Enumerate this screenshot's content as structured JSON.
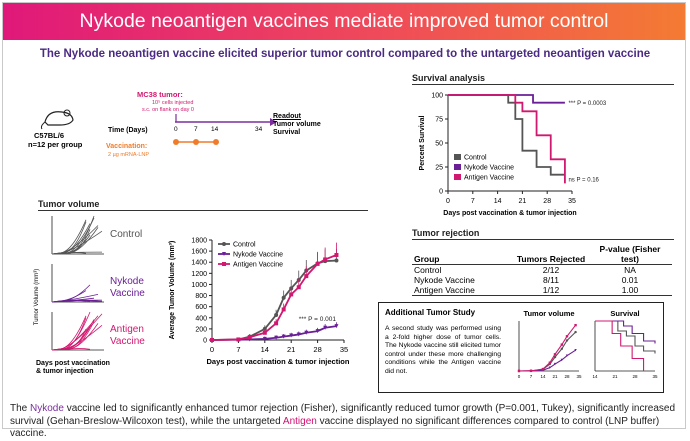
{
  "banner_title": "Nykode neoantigen vaccines mediate improved tumor control",
  "subtitle": "The Nykode neoantigen vaccine elicited superior tumor control compared to the untargeted neoantigen vaccine",
  "design": {
    "mouse_label": "C57BL/6",
    "group_size": "n=12 per group",
    "tumor_label": "MC38 tumor:",
    "tumor_detail_1": "10⁵ cells injected",
    "tumor_detail_2": "s.c. on flank on day 0",
    "time_label": "Time (Days)",
    "ticks": [
      "0",
      "7",
      "14",
      "34"
    ],
    "vaccination_label": "Vaccination:",
    "vaccination_detail": "2 µg mRNA-LNP",
    "readout_title": "Readout",
    "readout_items": [
      "Tumor volume",
      "Survival"
    ]
  },
  "colors": {
    "control": "#555555",
    "nykode": "#6a1f96",
    "antigen": "#d11870",
    "accent_orange": "#f07c2a"
  },
  "sections": {
    "tumor_volume": "Tumor volume",
    "survival": "Survival analysis",
    "rejection": "Tumor rejection",
    "additional": "Additional Tumor Study"
  },
  "spaghetti": {
    "ylabel": "Tumor Volume (mm³)",
    "xlabel_1": "Days post vaccination",
    "xlabel_2": "& tumor injection",
    "panel_labels": [
      "Control",
      "Nykode\nVaccine",
      "Antigen\nVaccine"
    ]
  },
  "rejection_table": {
    "headers": [
      "Group",
      "Tumors Rejected",
      "P-value (Fisher test)"
    ],
    "rows": [
      [
        "Control",
        "2/12",
        "NA"
      ],
      [
        "Nykode Vaccine",
        "8/11",
        "0.01"
      ],
      [
        "Antigen Vaccine",
        "1/12",
        "1.00"
      ]
    ]
  },
  "additional_text": "A second study was performed using a 2-fold higher dose of tumor cells. The Nykode vaccine still elicited tumor control under these more challenging conditions while the Antigen vaccine did not.",
  "footer": {
    "p1": "The ",
    "nykode": "Nykode",
    "p2": " vaccine led to significantly enhanced tumor rejection (Fisher), significantly reduced tumor growth (P=0.001, Tukey), significantly increased survival (Gehan-Breslow-Wilcoxon test), while the untargeted ",
    "antigen": "Antigen",
    "p3": " vaccine displayed no significant differences compared to control (LNP buffer) vaccine."
  },
  "chart_data": [
    {
      "type": "line",
      "name": "tumor-growth",
      "xlabel": "Days post vaccination & tumor injection",
      "ylabel": "Average Tumor Volume (mm³)",
      "xticks": [
        0,
        7,
        14,
        21,
        28,
        35
      ],
      "yticks": [
        0,
        200,
        400,
        600,
        800,
        1000,
        1200,
        1400,
        1600,
        1800
      ],
      "xlim": [
        0,
        35
      ],
      "ylim": [
        0,
        1800
      ],
      "legend_position": "top-left",
      "annotation": "*** P = 0.001",
      "x": [
        0,
        7,
        10,
        14,
        17,
        19,
        21,
        23,
        25,
        28,
        30,
        33
      ],
      "series": [
        {
          "name": "Control",
          "values": [
            0,
            10,
            60,
            200,
            450,
            760,
            930,
            1080,
            1250,
            1380,
            1420,
            1430
          ]
        },
        {
          "name": "Nykode Vaccine",
          "values": [
            0,
            5,
            10,
            20,
            40,
            60,
            80,
            100,
            130,
            160,
            220,
            250
          ]
        },
        {
          "name": "Antigen Vaccine",
          "values": [
            0,
            10,
            50,
            130,
            300,
            550,
            820,
            950,
            1150,
            1370,
            1450,
            1530
          ]
        }
      ]
    },
    {
      "type": "line",
      "name": "survival",
      "xlabel": "Days post vaccination & tumor injection",
      "ylabel": "Percent Survival",
      "xticks": [
        0,
        7,
        14,
        21,
        28,
        35
      ],
      "yticks": [
        0,
        25,
        50,
        75,
        100
      ],
      "xlim": [
        0,
        35
      ],
      "ylim": [
        0,
        100
      ],
      "legend_position": "bottom-left",
      "annotations": [
        "*** P = 0.0003",
        "ns P = 0.16"
      ],
      "series": [
        {
          "name": "Control",
          "x": [
            0,
            17,
            19,
            21,
            25,
            29,
            33
          ],
          "values": [
            100,
            92,
            75,
            42,
            25,
            17,
            17
          ]
        },
        {
          "name": "Nykode Vaccine",
          "x": [
            0,
            24,
            33
          ],
          "values": [
            100,
            92,
            92
          ]
        },
        {
          "name": "Antigen Vaccine",
          "x": [
            0,
            19,
            21,
            25,
            29,
            33
          ],
          "values": [
            100,
            92,
            83,
            58,
            33,
            8
          ]
        }
      ]
    },
    {
      "type": "line",
      "name": "additional-tumor-volume",
      "title": "Tumor volume",
      "xticks": [
        0,
        7,
        14,
        21,
        28,
        35
      ],
      "x": [
        0,
        7,
        14,
        18,
        21,
        25,
        28,
        33
      ],
      "series": [
        {
          "name": "Control",
          "values": [
            0,
            5,
            60,
            250,
            500,
            800,
            1100,
            1400
          ]
        },
        {
          "name": "Nykode Vaccine",
          "values": [
            0,
            5,
            30,
            120,
            250,
            400,
            550,
            750
          ]
        },
        {
          "name": "Antigen Vaccine",
          "values": [
            0,
            5,
            70,
            300,
            600,
            950,
            1250,
            1650
          ]
        }
      ]
    },
    {
      "type": "line",
      "name": "additional-survival",
      "title": "Survival",
      "xticks": [
        14,
        21,
        28,
        35
      ],
      "series": [
        {
          "name": "Control",
          "x": [
            14,
            22,
            25,
            28,
            31,
            35
          ],
          "values": [
            100,
            80,
            70,
            50,
            40,
            35
          ]
        },
        {
          "name": "Nykode Vaccine",
          "x": [
            14,
            24,
            27,
            31,
            35
          ],
          "values": [
            100,
            90,
            75,
            60,
            55
          ]
        },
        {
          "name": "Antigen Vaccine",
          "x": [
            14,
            20,
            23,
            27,
            31
          ],
          "values": [
            100,
            75,
            50,
            25,
            0
          ]
        }
      ]
    }
  ]
}
